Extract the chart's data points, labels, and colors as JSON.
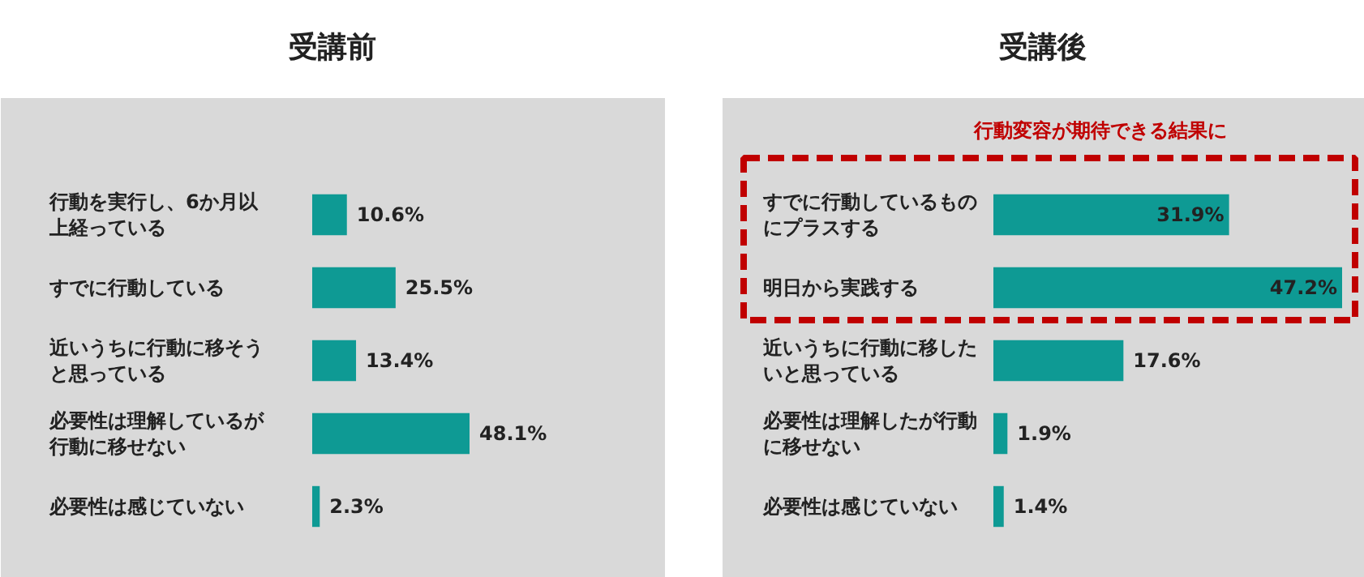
{
  "chart_data": [
    {
      "type": "bar",
      "orientation": "horizontal",
      "title": "受講前",
      "categories": [
        "行動を実行し、6か月以上経っている",
        "すでに行動している",
        "近いうちに行動に移そうと思っている",
        "必要性は理解しているが行動に移せない",
        "必要性は感じていない"
      ],
      "values": [
        10.6,
        25.5,
        13.4,
        48.1,
        2.3
      ],
      "value_labels": [
        "10.6%",
        "25.5%",
        "13.4%",
        "48.1%",
        "2.3%"
      ],
      "color": "#0e9a94"
    },
    {
      "type": "bar",
      "orientation": "horizontal",
      "title": "受講後",
      "categories": [
        "すでに行動しているものにプラスする",
        "明日から実践する",
        "近いうちに行動に移したいと思っている",
        "必要性は理解したが行動に移せない",
        "必要性は感じていない"
      ],
      "values": [
        31.9,
        47.2,
        17.6,
        1.9,
        1.4
      ],
      "value_labels": [
        "31.9%",
        "47.2%",
        "17.6%",
        "1.9%",
        "1.4%"
      ],
      "color": "#0e9a94",
      "annotations": [
        "行動変容が期待できる結果に"
      ]
    }
  ]
}
